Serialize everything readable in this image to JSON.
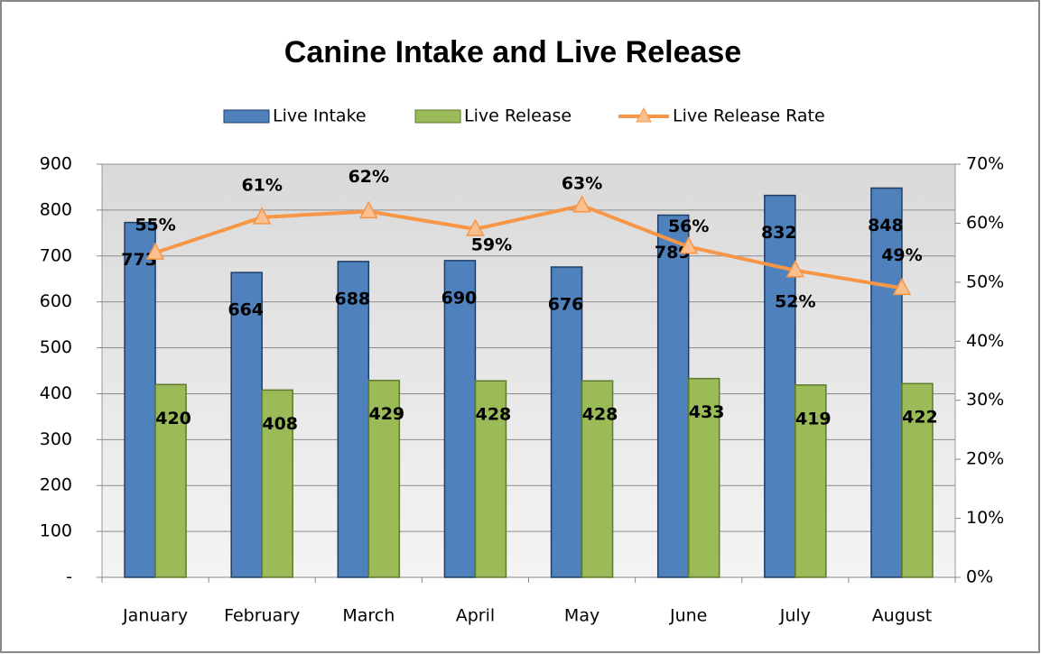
{
  "chart_data": {
    "type": "bar",
    "title": "Canine Intake and Live Release",
    "categories": [
      "January",
      "February",
      "March",
      "April",
      "May",
      "June",
      "July",
      "August"
    ],
    "series": [
      {
        "name": "Live Intake",
        "type": "bar",
        "color": "#4f81bd",
        "values": [
          773,
          664,
          688,
          690,
          676,
          789,
          832,
          848
        ]
      },
      {
        "name": "Live Release",
        "type": "bar",
        "color": "#9bbb59",
        "values": [
          420,
          408,
          429,
          428,
          428,
          433,
          419,
          422
        ]
      },
      {
        "name": "Live Release Rate",
        "type": "line",
        "axis": "y2",
        "color": "#f79646",
        "values": [
          55,
          61,
          62,
          59,
          63,
          56,
          52,
          49
        ],
        "value_labels": [
          "55%",
          "61%",
          "62%",
          "59%",
          "63%",
          "56%",
          "52%",
          "49%"
        ]
      }
    ],
    "ylim": [
      0,
      900
    ],
    "yticks": [
      {
        "value": 0,
        "label": "-"
      },
      100,
      200,
      300,
      400,
      500,
      600,
      700,
      800,
      900
    ],
    "y2lim": [
      0,
      70
    ],
    "y2ticks": [
      {
        "value": 0,
        "label": "0%"
      },
      {
        "value": 10,
        "label": "10%"
      },
      {
        "value": 20,
        "label": "20%"
      },
      {
        "value": 30,
        "label": "30%"
      },
      {
        "value": 40,
        "label": "40%"
      },
      {
        "value": 50,
        "label": "50%"
      },
      {
        "value": 60,
        "label": "60%"
      },
      {
        "value": 70,
        "label": "70%"
      }
    ],
    "grid": true,
    "legend": "top"
  }
}
